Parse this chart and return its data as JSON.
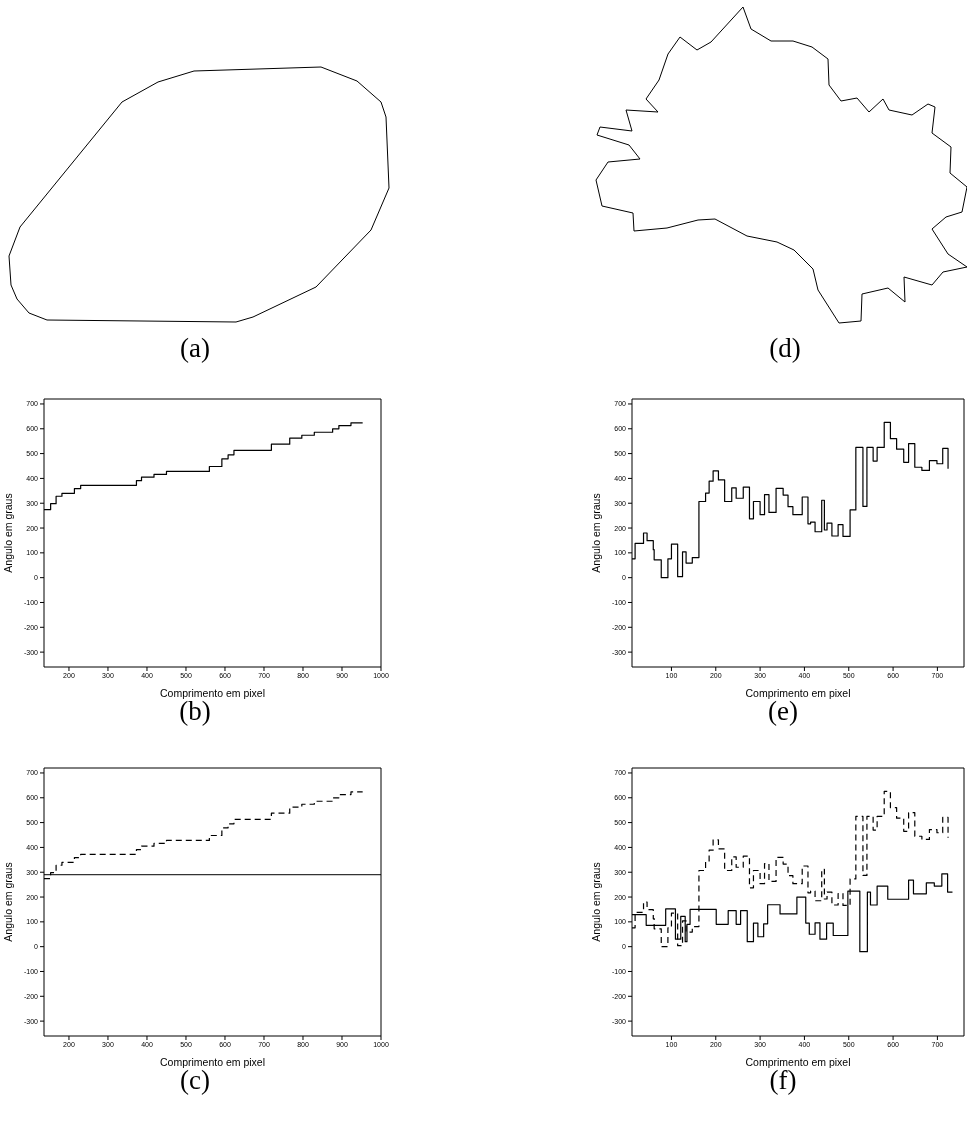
{
  "chart_data": [
    {
      "type": "other",
      "title": "(a)"
    },
    {
      "type": "other",
      "title": "(d)"
    },
    {
      "type": "step",
      "title": "(b)",
      "xlabel": "Comprimento em pixel",
      "ylabel": "Angulo em graus",
      "xlim": [
        136,
        1000
      ],
      "ylim": [
        -360,
        720
      ],
      "xticks": [
        200,
        300,
        400,
        500,
        600,
        700,
        800,
        900,
        1000
      ],
      "yticks": [
        -300,
        -200,
        -100,
        0,
        100,
        200,
        300,
        400,
        500,
        600,
        700
      ],
      "series": [
        {
          "color": "#000000",
          "line_style": "solid",
          "x": [
            136,
            153,
            167,
            182,
            214,
            230,
            373,
            386,
            418,
            450,
            560,
            592,
            608,
            623,
            719,
            766,
            797,
            829,
            876,
            892,
            923,
            953
          ],
          "values": [
            274,
            298,
            328,
            340,
            359,
            372,
            391,
            405,
            416,
            428,
            448,
            479,
            495,
            513,
            538,
            562,
            574,
            586,
            600,
            613,
            624,
            624
          ]
        }
      ]
    },
    {
      "type": "step",
      "title": "(e)",
      "xlabel": "Comprimento em pixel",
      "ylabel": "Angulo em graus",
      "xlim": [
        11,
        760
      ],
      "ylim": [
        -360,
        720
      ],
      "xticks": [
        100,
        200,
        300,
        400,
        500,
        600,
        700
      ],
      "yticks": [
        -300,
        -200,
        -100,
        0,
        100,
        200,
        300,
        400,
        500,
        600,
        700
      ],
      "series": [
        {
          "color": "#000000",
          "line_style": "solid",
          "x": [
            11,
            18,
            37,
            45,
            59,
            61,
            77,
            92,
            100,
            114,
            125,
            133,
            147,
            162,
            177,
            185,
            194,
            206,
            220,
            236,
            246,
            262,
            276,
            285,
            300,
            310,
            320,
            336,
            352,
            363,
            374,
            395,
            408,
            414,
            424,
            439,
            445,
            451,
            462,
            476,
            487,
            503,
            516,
            532,
            541,
            555,
            564,
            580,
            594,
            608,
            624,
            635,
            649,
            665,
            682,
            699,
            712,
            724
          ],
          "values": [
            76,
            138,
            180,
            149,
            113,
            72,
            0,
            76,
            135,
            4,
            104,
            59,
            81,
            307,
            341,
            389,
            430,
            394,
            307,
            362,
            320,
            365,
            237,
            307,
            254,
            335,
            263,
            360,
            333,
            286,
            254,
            325,
            217,
            224,
            185,
            312,
            192,
            220,
            168,
            214,
            166,
            273,
            525,
            287,
            525,
            470,
            525,
            626,
            560,
            518,
            465,
            540,
            445,
            432,
            472,
            459,
            521,
            439
          ]
        }
      ]
    },
    {
      "type": "step",
      "title": "(c)",
      "xlabel": "Comprimento em pixel",
      "ylabel": "Angulo em graus",
      "xlim": [
        136,
        1000
      ],
      "ylim": [
        -360,
        720
      ],
      "xticks": [
        200,
        300,
        400,
        500,
        600,
        700,
        800,
        900,
        1000
      ],
      "yticks": [
        -300,
        -200,
        -100,
        0,
        100,
        200,
        300,
        400,
        500,
        600,
        700
      ],
      "series": [
        {
          "color": "#000000",
          "line_style": "dashed",
          "x": [
            136,
            153,
            167,
            182,
            214,
            230,
            373,
            386,
            418,
            450,
            560,
            592,
            608,
            623,
            719,
            766,
            797,
            829,
            876,
            892,
            923,
            953
          ],
          "values": [
            274,
            298,
            328,
            340,
            359,
            372,
            391,
            405,
            416,
            428,
            448,
            479,
            495,
            513,
            538,
            562,
            574,
            586,
            600,
            613,
            624,
            624
          ]
        }
      ],
      "ref_lines": [
        {
          "axis": "y",
          "value": 290,
          "color": "#000000"
        }
      ]
    },
    {
      "type": "step",
      "title": "(f)",
      "xlabel": "Comprimento em pixel",
      "ylabel": "Angulo em graus",
      "xlim": [
        11,
        760
      ],
      "ylim": [
        -360,
        720
      ],
      "xticks": [
        100,
        200,
        300,
        400,
        500,
        600,
        700
      ],
      "yticks": [
        -300,
        -200,
        -100,
        0,
        100,
        200,
        300,
        400,
        500,
        600,
        700
      ],
      "series": [
        {
          "color": "#000000",
          "line_style": "dashed",
          "x": [
            11,
            18,
            37,
            45,
            59,
            61,
            77,
            92,
            100,
            114,
            125,
            133,
            147,
            162,
            177,
            185,
            194,
            206,
            220,
            236,
            246,
            262,
            276,
            285,
            300,
            310,
            320,
            336,
            352,
            363,
            374,
            395,
            408,
            414,
            424,
            439,
            445,
            451,
            462,
            476,
            487,
            503,
            516,
            532,
            541,
            555,
            564,
            580,
            594,
            608,
            624,
            635,
            649,
            665,
            682,
            699,
            712,
            724
          ],
          "values": [
            76,
            138,
            180,
            149,
            113,
            72,
            0,
            76,
            135,
            4,
            104,
            59,
            81,
            307,
            341,
            389,
            430,
            394,
            307,
            362,
            320,
            365,
            237,
            307,
            254,
            335,
            263,
            360,
            333,
            286,
            254,
            325,
            217,
            224,
            185,
            312,
            192,
            220,
            168,
            214,
            166,
            273,
            525,
            287,
            525,
            470,
            525,
            626,
            560,
            518,
            465,
            540,
            445,
            432,
            472,
            459,
            521,
            439
          ]
        },
        {
          "color": "#000000",
          "line_style": "solid",
          "x": [
            11,
            43,
            87,
            109,
            121,
            131,
            135,
            142,
            201,
            228,
            246,
            256,
            271,
            285,
            295,
            308,
            317,
            345,
            383,
            403,
            411,
            424,
            435,
            450,
            465,
            498,
            525,
            542,
            549,
            564,
            588,
            635,
            646,
            675,
            693,
            710,
            723,
            734
          ],
          "values": [
            129,
            86,
            152,
            30,
            122,
            20,
            90,
            150,
            90,
            145,
            90,
            145,
            20,
            95,
            40,
            92,
            169,
            132,
            200,
            95,
            50,
            96,
            30,
            95,
            45,
            224,
            -20,
            220,
            168,
            244,
            191,
            268,
            213,
            257,
            244,
            293,
            220,
            220
          ]
        }
      ]
    }
  ]
}
